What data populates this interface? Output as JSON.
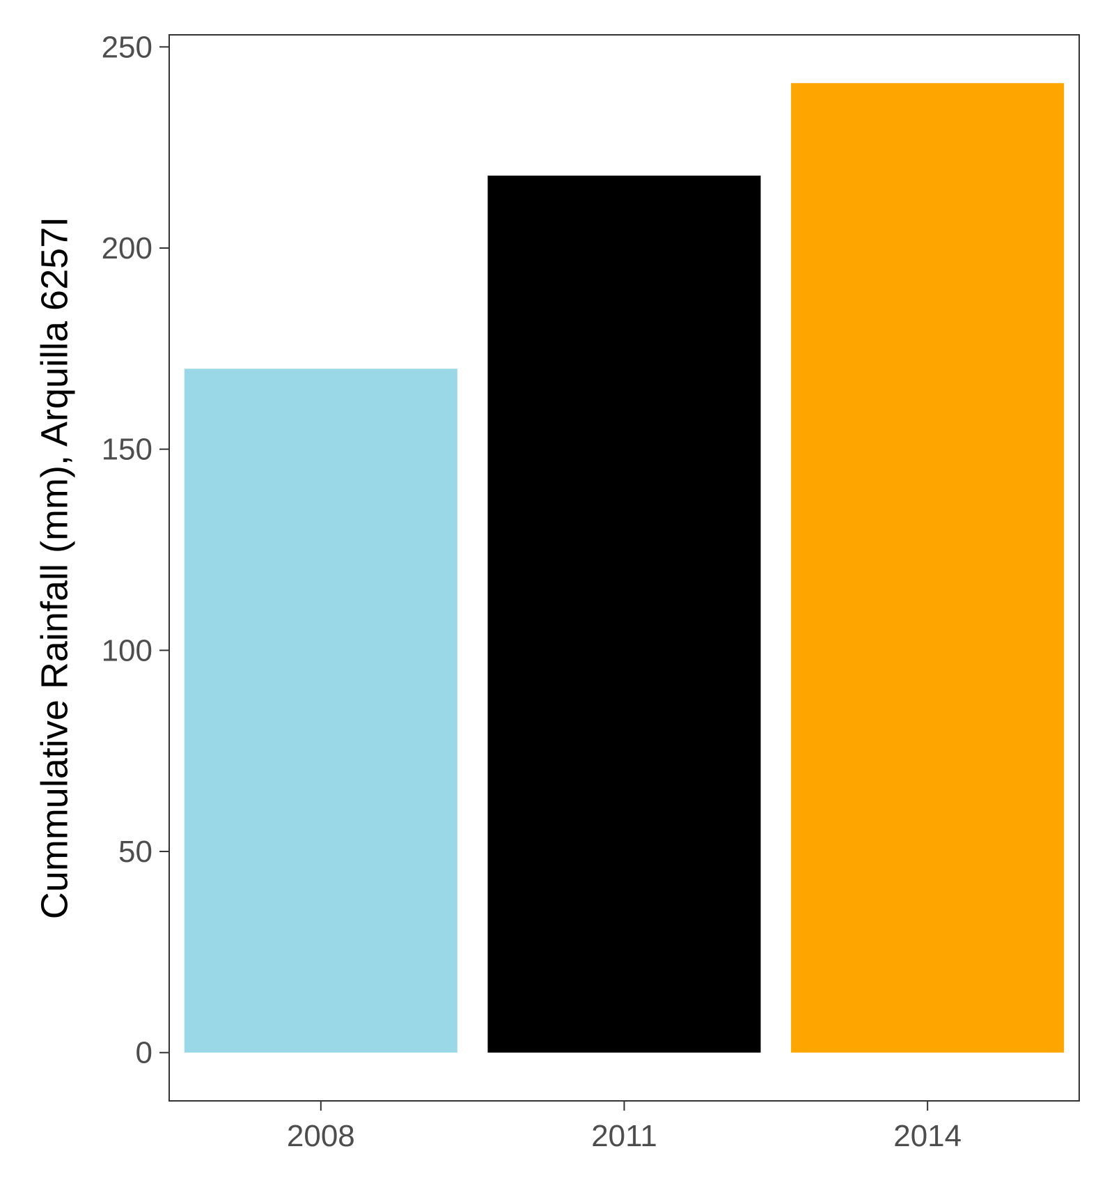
{
  "chart_data": {
    "type": "bar",
    "title": "",
    "xlabel": "",
    "ylabel": "Cummulative Rainfall (mm), Arquilla 6257I",
    "categories": [
      "2008",
      "2011",
      "2014"
    ],
    "values": [
      170,
      218,
      241
    ],
    "colors": [
      "#9bd8e7",
      "#000000",
      "#ffa500"
    ],
    "ylim": [
      -12,
      253
    ],
    "yticks": [
      0,
      50,
      100,
      150,
      200,
      250
    ],
    "ytick_labels": [
      "0",
      "50",
      "100",
      "150",
      "200",
      "250"
    ],
    "grid": false,
    "legend": "none"
  }
}
